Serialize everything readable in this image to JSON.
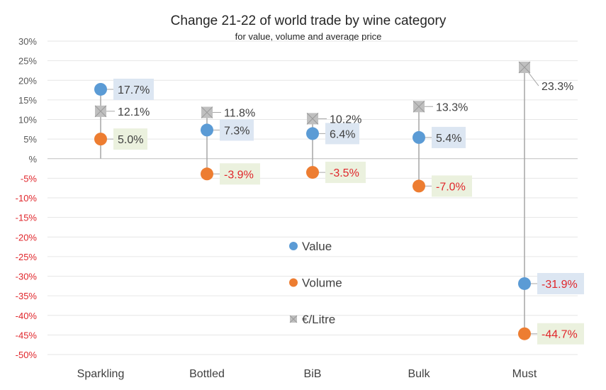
{
  "chart_data": {
    "type": "scatter",
    "title": "Change 21-22 of world trade by wine category",
    "subtitle": "for value, volume and average price",
    "categories": [
      "Sparkling",
      "Bottled",
      "BiB",
      "Bulk",
      "Must"
    ],
    "ylim": [
      -50,
      30
    ],
    "yticks": [
      30,
      25,
      20,
      15,
      10,
      5,
      0,
      -5,
      -10,
      -15,
      -20,
      -25,
      -30,
      -35,
      -40,
      -45,
      -50
    ],
    "ytick_labels": [
      "30%",
      "25%",
      "20%",
      "15%",
      "10%",
      "5%",
      "%",
      "-5%",
      "-10%",
      "-15%",
      "-20%",
      "-25%",
      "-30%",
      "-35%",
      "-40%",
      "-45%",
      "-50%"
    ],
    "grid": true,
    "legend_placement": "center",
    "series": [
      {
        "name": "Value",
        "color": "#5b9bd5",
        "marker": "circle",
        "label_bg": "#dce6f2",
        "values": [
          17.7,
          7.3,
          6.4,
          5.4,
          -31.9
        ],
        "labels": [
          "17.7%",
          "7.3%",
          "6.4%",
          "5.4%",
          "-31.9%"
        ]
      },
      {
        "name": "Volume",
        "color": "#ed7d31",
        "marker": "circle",
        "label_bg": "#ebf1de",
        "values": [
          5.0,
          -3.9,
          -3.5,
          -7.0,
          -44.7
        ],
        "labels": [
          "5.0%",
          "-3.9%",
          "-3.5%",
          "-7.0%",
          "-44.7%"
        ]
      },
      {
        "name": "€/Litre",
        "color": "#bfbfbf",
        "marker": "square-x",
        "label_bg": "",
        "values": [
          12.1,
          11.8,
          10.2,
          13.3,
          23.3
        ],
        "labels": [
          "12.1%",
          "11.8%",
          "10.2%",
          "13.3%",
          "23.3%"
        ]
      }
    ],
    "colors": {
      "positive_text": "#404040",
      "negative_text": "#e0262b",
      "axis_text": "#595959"
    }
  }
}
